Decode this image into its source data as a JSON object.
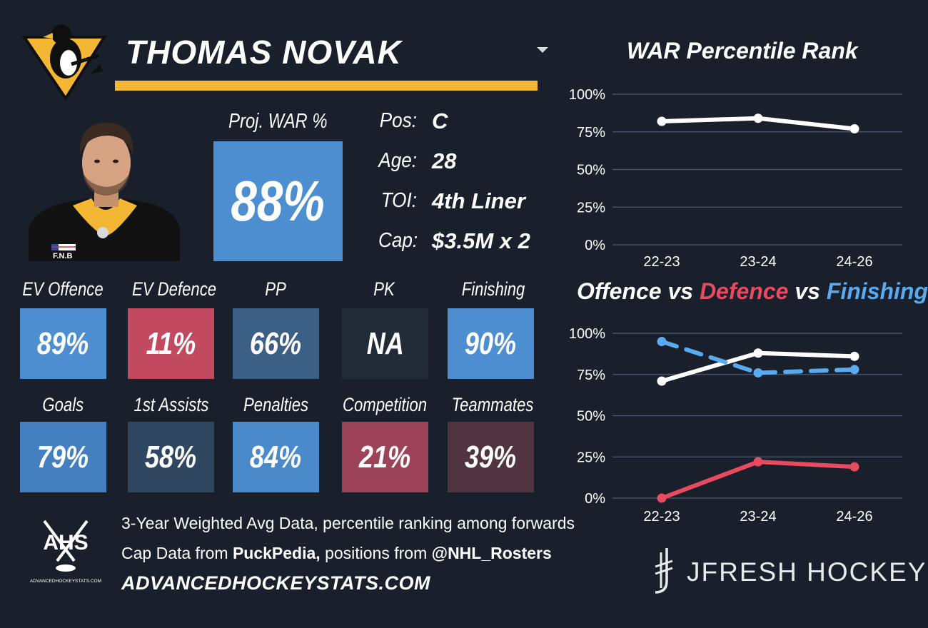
{
  "player": {
    "name": "THOMAS NOVAK",
    "proj_war_label": "Proj. WAR %",
    "proj_war_value": "88%",
    "info": [
      {
        "label": "Pos:",
        "value": "C"
      },
      {
        "label": "Age:",
        "value": "28"
      },
      {
        "label": "TOI:",
        "value": "4th Liner"
      },
      {
        "label": "Cap:",
        "value": "$3.5M x 2"
      }
    ],
    "jersey_sponsor": "F.N.B"
  },
  "tiles_row1": [
    {
      "label": "EV Offence",
      "value": "89%",
      "color": "#4d8ed0"
    },
    {
      "label": "EV Defence",
      "value": "11%",
      "color": "#c24a60"
    },
    {
      "label": "PP",
      "value": "66%",
      "color": "#3c5f86"
    },
    {
      "label": "PK",
      "value": "NA",
      "color": "#222b38"
    },
    {
      "label": "Finishing",
      "value": "90%",
      "color": "#4d8ed0"
    }
  ],
  "tiles_row2": [
    {
      "label": "Goals",
      "value": "79%",
      "color": "#4480bf"
    },
    {
      "label": "1st Assists",
      "value": "58%",
      "color": "#2f4660"
    },
    {
      "label": "Penalties",
      "value": "84%",
      "color": "#4a89ca"
    },
    {
      "label": "Competition",
      "value": "21%",
      "color": "#9c4357"
    },
    {
      "label": "Teammates",
      "value": "39%",
      "color": "#51343f"
    }
  ],
  "footer": {
    "line1": "3-Year Weighted Avg Data, percentile ranking among forwards",
    "line2_prefix": "Cap Data from ",
    "line2_source1": "PuckPedia,",
    "line2_mid": " positions from ",
    "line2_source2": "@NHL_Rosters",
    "site": "ADVANCEDHOCKEYSTATS.COM",
    "ahs_logo_text": "AHS",
    "ahs_logo_sub": "ADVANCEDHOCKEYSTATS.COM",
    "brand": "JFRESH HOCKEY"
  },
  "chart_data": [
    {
      "type": "line",
      "title": "WAR Percentile Rank",
      "categories": [
        "22-23",
        "23-24",
        "24-26"
      ],
      "y_ticks": [
        "100%",
        "75%",
        "50%",
        "25%",
        "0%"
      ],
      "ylim": [
        0,
        100
      ],
      "series": [
        {
          "values": [
            82,
            84,
            77
          ],
          "color": "#ffffff",
          "dashed": false
        }
      ]
    },
    {
      "type": "line",
      "title_parts": [
        {
          "text": "Offence",
          "color": "#ffffff"
        },
        {
          "text": " vs ",
          "color": "#ffffff"
        },
        {
          "text": "Defence",
          "color": "#e84a5f"
        },
        {
          "text": " vs ",
          "color": "#ffffff"
        },
        {
          "text": "Finishing",
          "color": "#5aaaf0"
        }
      ],
      "categories": [
        "22-23",
        "23-24",
        "24-26"
      ],
      "y_ticks": [
        "100%",
        "75%",
        "50%",
        "25%",
        "0%"
      ],
      "ylim": [
        0,
        100
      ],
      "series": [
        {
          "name": "Offence",
          "values": [
            71,
            88,
            86
          ],
          "color": "#ffffff",
          "dashed": false
        },
        {
          "name": "Defence",
          "values": [
            0,
            22,
            19
          ],
          "color": "#e84a5f",
          "dashed": false
        },
        {
          "name": "Finishing",
          "values": [
            95,
            76,
            78
          ],
          "color": "#5aaaf0",
          "dashed": true
        }
      ]
    }
  ]
}
